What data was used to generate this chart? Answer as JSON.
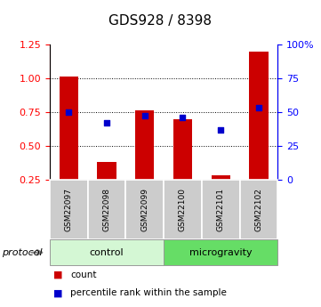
{
  "title": "GDS928 / 8398",
  "samples": [
    "GSM22097",
    "GSM22098",
    "GSM22099",
    "GSM22100",
    "GSM22101",
    "GSM22102"
  ],
  "red_values": [
    1.01,
    0.38,
    0.76,
    0.7,
    0.28,
    1.2
  ],
  "blue_values": [
    50,
    42,
    47,
    46,
    37,
    53
  ],
  "ylim_left": [
    0.25,
    1.25
  ],
  "ylim_right": [
    0,
    100
  ],
  "yticks_left": [
    0.25,
    0.5,
    0.75,
    1.0,
    1.25
  ],
  "yticks_right": [
    0,
    25,
    50,
    75,
    100
  ],
  "ytick_labels_right": [
    "0",
    "25",
    "50",
    "75",
    "100%"
  ],
  "groups": [
    {
      "label": "control",
      "start": 0,
      "end": 3,
      "color": "#d4f7d4"
    },
    {
      "label": "microgravity",
      "start": 3,
      "end": 6,
      "color": "#66dd66"
    }
  ],
  "protocol_label": "protocol",
  "bar_color": "#cc0000",
  "square_color": "#0000cc",
  "bar_width": 0.5,
  "grid_yticks": [
    0.5,
    0.75,
    1.0
  ],
  "sample_box_color": "#cccccc",
  "title_fontsize": 11,
  "tick_fontsize": 8,
  "label_fontsize": 8
}
